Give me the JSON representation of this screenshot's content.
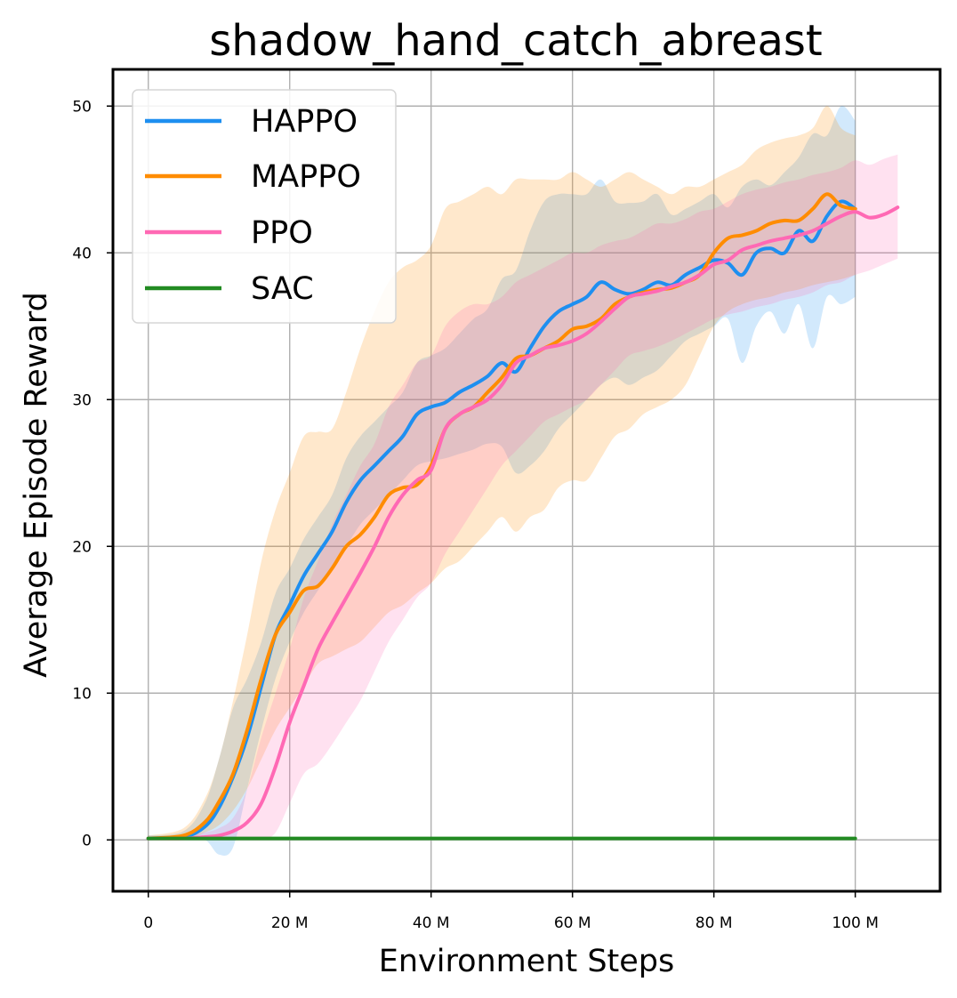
{
  "chart_data": {
    "type": "line",
    "title": "shadow_hand_catch_abreast",
    "xlabel": "Environment Steps",
    "ylabel": "Average Episode Reward",
    "xlim": [
      -5,
      112
    ],
    "ylim": [
      -3.5,
      52.5
    ],
    "x_unit": "M steps",
    "xticks": [
      0,
      20,
      40,
      60,
      80,
      100
    ],
    "xtick_labels": [
      "0",
      "20 M",
      "40 M",
      "60 M",
      "80 M",
      "100 M"
    ],
    "yticks": [
      0,
      10,
      20,
      30,
      40,
      50
    ],
    "ytick_labels": [
      "0",
      "10",
      "20",
      "30",
      "40",
      "50"
    ],
    "grid": true,
    "legend_position": "top-left",
    "series": [
      {
        "name": "HAPPO",
        "color": "#1e8ff0",
        "x": [
          0,
          5,
          8,
          10,
          12,
          14,
          16,
          18,
          20,
          22,
          24,
          26,
          28,
          30,
          32,
          34,
          36,
          38,
          40,
          42,
          44,
          46,
          48,
          50,
          52,
          54,
          56,
          58,
          60,
          62,
          64,
          66,
          68,
          70,
          72,
          74,
          76,
          78,
          80,
          82,
          84,
          86,
          88,
          90,
          92,
          94,
          96,
          98,
          100
        ],
        "y": [
          0.1,
          0.2,
          0.9,
          2.2,
          4.3,
          7.0,
          10.5,
          14.0,
          16.0,
          18.0,
          19.5,
          21.0,
          23.0,
          24.5,
          25.5,
          26.5,
          27.5,
          29.0,
          29.5,
          29.8,
          30.5,
          31.0,
          31.6,
          32.5,
          31.9,
          33.5,
          35.0,
          36.0,
          36.5,
          37.0,
          38.0,
          37.5,
          37.2,
          37.5,
          38.0,
          37.8,
          38.5,
          39.0,
          39.5,
          39.3,
          38.5,
          40.0,
          40.3,
          40.0,
          41.5,
          40.8,
          42.5,
          43.5,
          43.0
        ],
        "band_lower": [
          0.0,
          0.0,
          0.0,
          -1.0,
          -0.5,
          3.5,
          7.5,
          11.0,
          13.5,
          15.5,
          17.0,
          18.5,
          20.0,
          21.5,
          22.5,
          23.5,
          24.5,
          25.5,
          25.8,
          26.0,
          26.3,
          26.6,
          27.0,
          26.8,
          25.0,
          25.5,
          26.5,
          28.0,
          29.0,
          30.0,
          31.0,
          31.5,
          31.0,
          31.5,
          32.0,
          33.0,
          34.0,
          34.5,
          35.0,
          35.5,
          32.5,
          35.0,
          36.0,
          34.5,
          36.5,
          33.5,
          37.0,
          36.5,
          37.0
        ],
        "band_upper": [
          0.3,
          0.6,
          2.5,
          5.5,
          9.0,
          11.0,
          13.5,
          16.8,
          18.5,
          20.5,
          22.0,
          23.5,
          26.0,
          27.5,
          28.5,
          29.5,
          30.5,
          32.5,
          33.0,
          33.5,
          34.5,
          35.5,
          36.2,
          38.2,
          38.8,
          41.5,
          43.5,
          44.0,
          44.0,
          44.0,
          45.0,
          43.5,
          43.4,
          43.5,
          44.0,
          42.6,
          43.0,
          43.5,
          44.0,
          43.1,
          44.5,
          45.0,
          44.6,
          45.5,
          46.5,
          48.1,
          48.0,
          50.0,
          49.0
        ]
      },
      {
        "name": "MAPPO",
        "color": "#ff8c00",
        "x": [
          0,
          5,
          8,
          10,
          12,
          14,
          16,
          18,
          20,
          22,
          24,
          26,
          28,
          30,
          32,
          34,
          36,
          38,
          40,
          42,
          44,
          46,
          48,
          50,
          52,
          54,
          56,
          58,
          60,
          62,
          64,
          66,
          68,
          70,
          72,
          74,
          76,
          78,
          80,
          82,
          84,
          86,
          88,
          90,
          92,
          94,
          96,
          98,
          100
        ],
        "y": [
          0.1,
          0.3,
          1.2,
          2.6,
          4.5,
          7.5,
          11.0,
          14.0,
          15.5,
          17.0,
          17.3,
          18.5,
          20.0,
          20.8,
          22.0,
          23.5,
          24.0,
          24.2,
          25.5,
          28.0,
          29.0,
          29.5,
          30.5,
          31.5,
          32.8,
          33.0,
          33.5,
          34.0,
          34.8,
          35.0,
          35.5,
          36.5,
          37.0,
          37.3,
          37.5,
          37.6,
          38.0,
          38.5,
          40.0,
          41.0,
          41.2,
          41.5,
          42.0,
          42.2,
          42.2,
          43.0,
          44.0,
          43.2,
          43.0
        ],
        "band_lower": [
          0.0,
          0.0,
          0.5,
          1.0,
          2.0,
          3.5,
          5.5,
          7.5,
          9.0,
          10.5,
          12.0,
          12.5,
          13.0,
          13.5,
          14.5,
          15.5,
          16.0,
          16.8,
          17.5,
          18.5,
          19.0,
          20.0,
          21.0,
          22.0,
          21.0,
          22.0,
          22.5,
          24.0,
          24.5,
          24.5,
          26.0,
          27.5,
          28.0,
          29.0,
          29.5,
          30.0,
          31.0,
          33.0,
          35.0,
          36.0,
          36.5,
          36.8,
          37.0,
          37.3,
          37.5,
          37.8,
          38.0,
          38.2,
          38.5
        ],
        "band_upper": [
          0.3,
          0.8,
          2.8,
          5.5,
          9.5,
          14.0,
          19.0,
          22.5,
          25.0,
          27.5,
          27.8,
          28.0,
          30.5,
          33.5,
          36.0,
          38.0,
          39.0,
          39.5,
          40.5,
          43.0,
          43.5,
          44.0,
          44.5,
          44.0,
          45.0,
          45.0,
          45.0,
          45.0,
          45.5,
          45.0,
          44.5,
          45.0,
          45.5,
          45.0,
          44.5,
          44.0,
          44.5,
          44.5,
          45.0,
          45.5,
          46.0,
          47.0,
          47.5,
          47.8,
          48.0,
          48.5,
          50.0,
          48.5,
          48.0
        ]
      },
      {
        "name": "PPO",
        "color": "#ff69b4",
        "x": [
          0,
          5,
          8,
          10,
          12,
          14,
          16,
          18,
          20,
          22,
          24,
          26,
          28,
          30,
          32,
          34,
          36,
          38,
          40,
          42,
          44,
          46,
          48,
          50,
          52,
          54,
          56,
          58,
          60,
          62,
          64,
          66,
          68,
          70,
          72,
          74,
          76,
          78,
          80,
          82,
          84,
          86,
          88,
          90,
          92,
          94,
          96,
          98,
          100,
          102,
          104,
          106
        ],
        "y": [
          0.1,
          0.1,
          0.2,
          0.3,
          0.6,
          1.2,
          2.5,
          5.0,
          8.0,
          10.5,
          13.0,
          14.8,
          16.5,
          18.2,
          20.0,
          22.0,
          23.5,
          24.5,
          25.2,
          28.0,
          29.0,
          29.5,
          30.0,
          31.0,
          32.5,
          33.0,
          33.5,
          33.7,
          34.0,
          34.5,
          35.3,
          36.2,
          37.0,
          37.2,
          37.4,
          37.7,
          38.0,
          38.5,
          39.2,
          39.5,
          40.2,
          40.5,
          40.8,
          41.0,
          41.2,
          41.5,
          42.0,
          42.5,
          42.8,
          42.4,
          42.6,
          43.1
        ],
        "band_lower": [
          0.0,
          0.0,
          0.0,
          0.0,
          0.0,
          0.0,
          0.0,
          0.5,
          2.5,
          4.5,
          5.2,
          6.5,
          8.0,
          9.5,
          11.5,
          13.5,
          15.0,
          16.5,
          17.5,
          19.5,
          21.0,
          22.5,
          24.0,
          25.5,
          26.5,
          27.5,
          28.5,
          29.0,
          29.5,
          30.0,
          31.0,
          32.0,
          33.0,
          33.3,
          33.6,
          34.0,
          34.5,
          35.0,
          35.5,
          35.8,
          36.0,
          36.3,
          36.5,
          36.8,
          37.0,
          37.3,
          37.8,
          38.0,
          38.5,
          38.8,
          39.2,
          39.6
        ],
        "band_upper": [
          0.2,
          0.3,
          0.5,
          0.8,
          1.5,
          3.5,
          7.0,
          10.0,
          13.0,
          16.5,
          19.0,
          21.5,
          23.5,
          25.5,
          27.0,
          29.5,
          31.0,
          32.5,
          33.0,
          35.0,
          36.0,
          36.5,
          36.5,
          37.0,
          38.0,
          38.5,
          39.0,
          39.5,
          40.0,
          40.0,
          40.5,
          40.8,
          41.0,
          41.5,
          42.0,
          42.0,
          42.3,
          42.8,
          43.0,
          43.5,
          44.0,
          44.3,
          44.5,
          44.8,
          45.0,
          45.3,
          45.5,
          45.8,
          46.3,
          46.0,
          46.4,
          46.7
        ]
      },
      {
        "name": "SAC",
        "color": "#228b22",
        "x": [
          0,
          10,
          20,
          30,
          40,
          50,
          60,
          70,
          80,
          90,
          100
        ],
        "y": [
          0.1,
          0.1,
          0.1,
          0.1,
          0.1,
          0.1,
          0.1,
          0.1,
          0.1,
          0.1,
          0.1
        ],
        "band_lower": [
          0.05,
          0.05,
          0.05,
          0.05,
          0.05,
          0.05,
          0.05,
          0.05,
          0.05,
          0.05,
          0.05
        ],
        "band_upper": [
          0.2,
          0.2,
          0.2,
          0.2,
          0.2,
          0.2,
          0.2,
          0.2,
          0.2,
          0.2,
          0.2
        ]
      }
    ]
  }
}
